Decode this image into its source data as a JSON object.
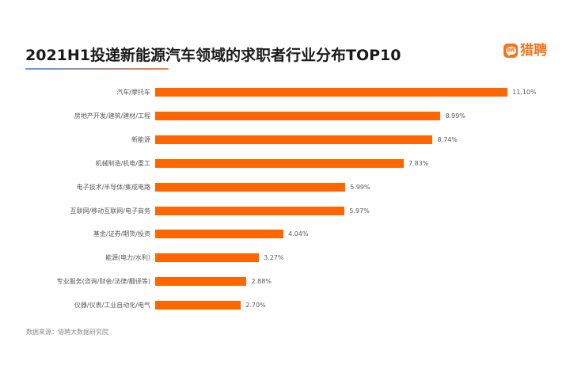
{
  "header": {
    "title": "2021H1投递新能源汽车领域的求职者行业分布TOP10",
    "logo_icon_text": "猎聘",
    "logo_text": "猎聘",
    "accent_color": "#ff6600",
    "underline_gradient": [
      "#5b9bf0",
      "#f08040"
    ]
  },
  "footer": {
    "source": "数据来源：猎聘大数据研究院"
  },
  "chart_data": {
    "type": "bar",
    "orientation": "horizontal",
    "title": "2021H1投递新能源汽车领域的求职者行业分布TOP10",
    "xlabel": "",
    "ylabel": "",
    "categories": [
      "汽车/摩托车",
      "房地产开发/建筑/建材/工程",
      "新能源",
      "机械制造/机电/重工",
      "电子技术/半导体/集成电路",
      "互联网/移动互联网/电子商务",
      "基金/证券/期货/投资",
      "能源(电力/水利)",
      "专业服务(咨询/财会/法律/翻译等)",
      "仪器/仪表/工业自动化/电气"
    ],
    "values": [
      11.1,
      8.99,
      8.74,
      7.83,
      5.99,
      5.97,
      4.04,
      3.27,
      2.88,
      2.7
    ],
    "value_labels": [
      "11.10%",
      "8.99%",
      "8.74%",
      "7.83%",
      "5.99%",
      "5.97%",
      "4.04%",
      "3.27%",
      "2.88%",
      "2.70%"
    ],
    "unit": "%",
    "bar_color": "#ff6600",
    "grid": false,
    "legend": null,
    "source": "数据来源：猎聘大数据研究院"
  }
}
